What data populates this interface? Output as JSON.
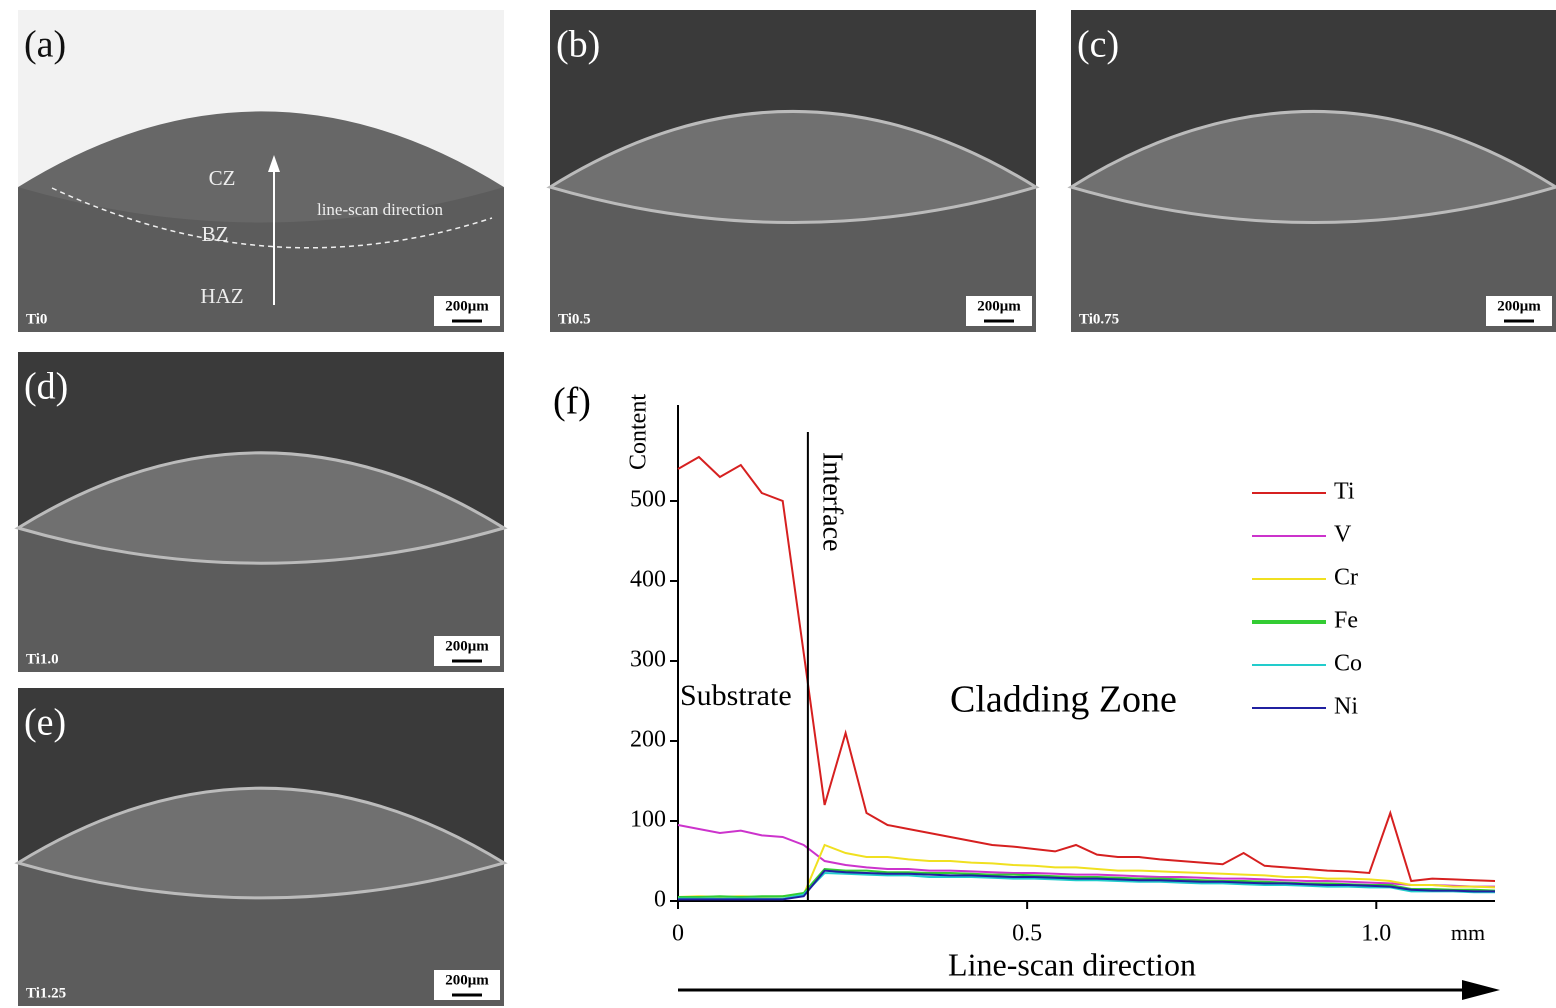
{
  "panels": [
    {
      "label": "(a)",
      "sample": "Ti0",
      "scale": "200μm",
      "annotations": [
        "CZ",
        "BZ",
        "HAZ",
        "line-scan direction"
      ]
    },
    {
      "label": "(b)",
      "sample": "Ti0.5",
      "scale": "200μm"
    },
    {
      "label": "(c)",
      "sample": "Ti0.75",
      "scale": "200μm"
    },
    {
      "label": "(d)",
      "sample": "Ti1.0",
      "scale": "200μm"
    },
    {
      "label": "(e)",
      "sample": "Ti1.25",
      "scale": "200μm"
    }
  ],
  "chart_data": {
    "type": "line",
    "panel_label": "(f)",
    "ylabel": "Content",
    "xunit": "mm",
    "xlabel": "Line-scan direction",
    "interface": {
      "label": "Interface",
      "x": 0.186
    },
    "region_labels": [
      "Substrate",
      "Cladding Zone"
    ],
    "xlim": [
      0,
      1.17
    ],
    "xticks": [
      0,
      0.5,
      {
        "value": 1,
        "label": "1.0"
      }
    ],
    "ylim": [
      0,
      620
    ],
    "yticks": [
      0,
      100,
      200,
      300,
      400,
      500
    ],
    "legend": "upper right",
    "x": [
      0,
      0.03,
      0.06,
      0.09,
      0.12,
      0.15,
      0.18,
      0.21,
      0.24,
      0.27,
      0.3,
      0.33,
      0.36,
      0.39,
      0.42,
      0.45,
      0.48,
      0.51,
      0.54,
      0.57,
      0.6,
      0.63,
      0.66,
      0.69,
      0.72,
      0.75,
      0.78,
      0.81,
      0.84,
      0.87,
      0.9,
      0.93,
      0.96,
      0.99,
      1.02,
      1.05,
      1.08,
      1.11,
      1.14,
      1.17
    ],
    "series": [
      {
        "name": "Ti",
        "color": "#d62020",
        "values": [
          540,
          555,
          530,
          545,
          510,
          500,
          310,
          120,
          210,
          110,
          95,
          90,
          85,
          80,
          75,
          70,
          68,
          65,
          62,
          70,
          58,
          55,
          55,
          52,
          50,
          48,
          46,
          60,
          44,
          42,
          40,
          38,
          37,
          35,
          110,
          25,
          28,
          27,
          26,
          25
        ]
      },
      {
        "name": "V",
        "color": "#cc33cc",
        "values": [
          95,
          90,
          85,
          88,
          82,
          80,
          70,
          50,
          45,
          42,
          40,
          40,
          38,
          38,
          37,
          36,
          35,
          35,
          34,
          33,
          33,
          32,
          31,
          30,
          30,
          29,
          28,
          28,
          27,
          26,
          25,
          25,
          24,
          23,
          22,
          20,
          20,
          19,
          18,
          18
        ]
      },
      {
        "name": "Cr",
        "color": "#f0e020",
        "values": [
          5,
          6,
          5,
          6,
          5,
          6,
          8,
          70,
          60,
          55,
          55,
          52,
          50,
          50,
          48,
          47,
          45,
          44,
          42,
          42,
          40,
          38,
          38,
          37,
          36,
          35,
          34,
          33,
          32,
          30,
          30,
          28,
          28,
          27,
          25,
          20,
          20,
          18,
          18,
          17
        ]
      },
      {
        "name": "Fe",
        "color": "#33cc33",
        "values": [
          5,
          5,
          6,
          5,
          6,
          6,
          10,
          40,
          38,
          38,
          36,
          36,
          35,
          35,
          34,
          33,
          33,
          32,
          31,
          30,
          30,
          29,
          28,
          28,
          27,
          26,
          25,
          25,
          24,
          23,
          22,
          22,
          21,
          20,
          20,
          15,
          15,
          14,
          14,
          13
        ]
      },
      {
        "name": "Co",
        "color": "#22cccc",
        "values": [
          3,
          3,
          3,
          3,
          3,
          3,
          8,
          35,
          34,
          33,
          32,
          32,
          30,
          30,
          30,
          29,
          28,
          28,
          27,
          26,
          26,
          25,
          24,
          24,
          23,
          22,
          22,
          21,
          20,
          20,
          19,
          18,
          18,
          17,
          17,
          12,
          12,
          12,
          11,
          11
        ]
      },
      {
        "name": "Ni",
        "color": "#2020a0",
        "values": [
          2,
          2,
          2,
          2,
          2,
          2,
          6,
          38,
          36,
          35,
          34,
          34,
          33,
          32,
          32,
          31,
          30,
          30,
          29,
          28,
          28,
          27,
          26,
          26,
          25,
          24,
          24,
          23,
          22,
          22,
          21,
          20,
          20,
          19,
          18,
          14,
          13,
          13,
          12,
          12
        ]
      }
    ]
  }
}
